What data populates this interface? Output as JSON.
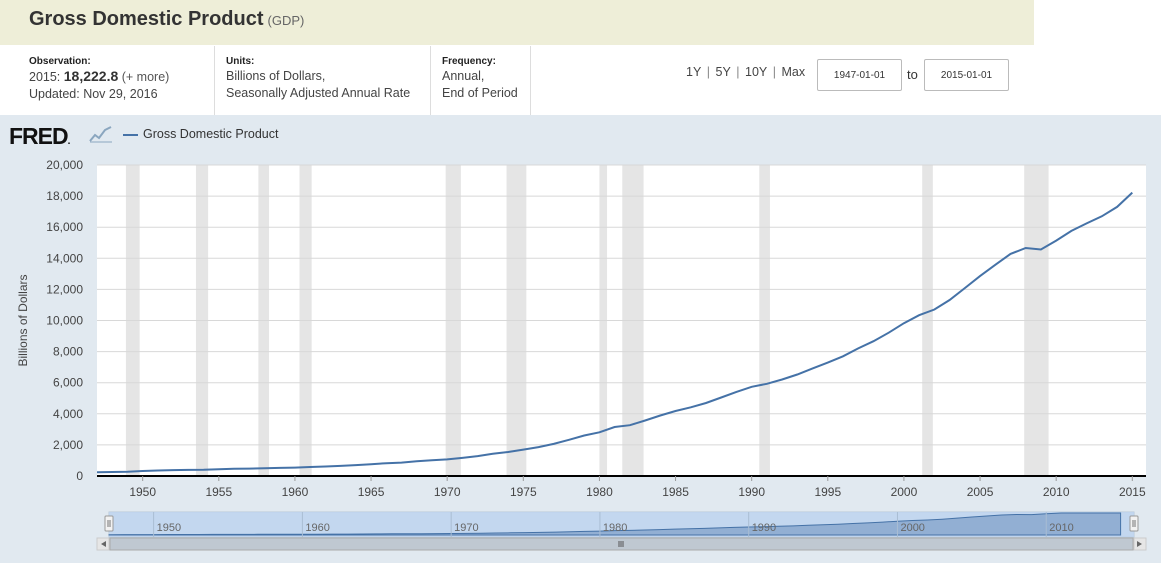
{
  "header": {
    "title": "Gross Domestic Product",
    "series_id": "(GDP)"
  },
  "observation": {
    "label": "Observation:",
    "date": "2015:",
    "value": "18,222.8",
    "more": "(+ more)",
    "updated": "Updated: Nov 29, 2016"
  },
  "units": {
    "label": "Units:",
    "line1": "Billions of Dollars,",
    "line2": "Seasonally Adjusted Annual Rate"
  },
  "frequency": {
    "label": "Frequency:",
    "line1": "Annual,",
    "line2": "End of Period"
  },
  "range": {
    "links": [
      "1Y",
      "5Y",
      "10Y",
      "Max"
    ],
    "start": "1947-01-01",
    "to": "to",
    "end": "2015-01-01"
  },
  "logo": "FRED",
  "colors": {
    "series": "#4572a7",
    "recession": "#e5e5e5",
    "background": "#e1e9f0",
    "title_bar": "#eeeed8"
  },
  "chart_data": {
    "type": "line",
    "title": "",
    "ylabel": "Billions of Dollars",
    "ylim": [
      0,
      20000
    ],
    "xlim": [
      1947,
      2015.9
    ],
    "grid": true,
    "legend_placement": "top-left",
    "yticks": [
      "0",
      "2,000",
      "4,000",
      "6,000",
      "8,000",
      "10,000",
      "12,000",
      "14,000",
      "16,000",
      "18,000",
      "20,000"
    ],
    "xticks": [
      "1950",
      "1955",
      "1960",
      "1965",
      "1970",
      "1975",
      "1980",
      "1985",
      "1990",
      "1995",
      "2000",
      "2005",
      "2010",
      "2015"
    ],
    "navigator_ticks": [
      "1950",
      "1960",
      "1970",
      "1980",
      "1990",
      "2000",
      "2010"
    ],
    "recessions": [
      [
        1948.9,
        1949.8
      ],
      [
        1953.5,
        1954.3
      ],
      [
        1957.6,
        1958.3
      ],
      [
        1960.3,
        1961.1
      ],
      [
        1969.9,
        1970.9
      ],
      [
        1973.9,
        1975.2
      ],
      [
        1980.0,
        1980.5
      ],
      [
        1981.5,
        1982.9
      ],
      [
        1990.5,
        1991.2
      ],
      [
        2001.2,
        2001.9
      ],
      [
        2007.9,
        2009.5
      ]
    ],
    "series": [
      {
        "name": "Gross Domestic Product",
        "x": [
          1947,
          1948,
          1949,
          1950,
          1951,
          1952,
          1953,
          1954,
          1955,
          1956,
          1957,
          1958,
          1959,
          1960,
          1961,
          1962,
          1963,
          1964,
          1965,
          1966,
          1967,
          1968,
          1969,
          1970,
          1971,
          1972,
          1973,
          1974,
          1975,
          1976,
          1977,
          1978,
          1979,
          1980,
          1981,
          1982,
          1983,
          1984,
          1985,
          1986,
          1987,
          1988,
          1989,
          1990,
          1991,
          1992,
          1993,
          1994,
          1995,
          1996,
          1997,
          1998,
          1999,
          2000,
          2001,
          2002,
          2003,
          2004,
          2005,
          2006,
          2007,
          2008,
          2009,
          2010,
          2011,
          2012,
          2013,
          2014,
          2015
        ],
        "values": [
          243,
          260,
          272,
          320,
          356,
          381,
          391,
          399,
          437,
          461,
          474,
          500,
          522,
          542,
          580,
          613,
          650,
          700,
          757,
          824,
          864,
          943,
          1012,
          1070,
          1164,
          1280,
          1426,
          1545,
          1699,
          1859,
          2067,
          2331,
          2602,
          2812,
          3148,
          3266,
          3569,
          3888,
          4181,
          4416,
          4692,
          5047,
          5407,
          5735,
          5931,
          6206,
          6526,
          6917,
          7290,
          7695,
          8203,
          8666,
          9215,
          9825,
          10344,
          10707,
          11317,
          12083,
          12857,
          13581,
          14280,
          14664,
          14563,
          15136,
          15762,
          16243,
          16699,
          17303,
          18223
        ]
      }
    ]
  }
}
